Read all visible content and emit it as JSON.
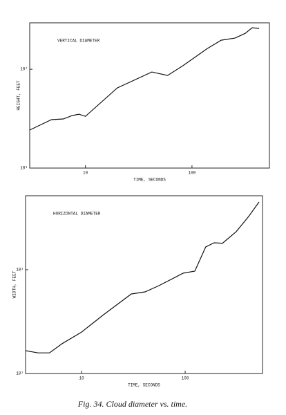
{
  "chart_data": [
    {
      "type": "line",
      "title": "VERTICAL DIAMETER",
      "xlabel": "TIME, SECONDS",
      "ylabel": "HEIGHT, FEET",
      "color": "#111",
      "log_x": true,
      "log_y": true,
      "x": [
        3.0,
        4.8,
        6.2,
        7.5,
        8.7,
        10,
        19.9,
        42,
        59,
        82,
        139,
        188,
        253,
        316,
        367,
        427
      ],
      "values": [
        2425,
        3090,
        3140,
        3400,
        3510,
        3340,
        6470,
        9380,
        8650,
        10840,
        16200,
        19700,
        20650,
        23100,
        26300,
        25900
      ],
      "xlim": [
        3.0,
        533
      ],
      "ylim": [
        1000,
        29500
      ],
      "xticks": [
        10,
        100
      ],
      "yticks": [
        {
          "value": 1000,
          "label": "10³"
        },
        {
          "value": 10000,
          "label": "10⁴"
        }
      ]
    },
    {
      "type": "line",
      "title": "HORIZONTAL DIAMETER",
      "xlabel": "TIME, SECONDS",
      "ylabel": "WIDTH, FEET",
      "color": "#111",
      "log_x": true,
      "log_y": true,
      "x": [
        2.88,
        3.8,
        4.9,
        6.5,
        10,
        16.3,
        30.2,
        41,
        55.8,
        95.5,
        124,
        158,
        191,
        229,
        259,
        311,
        410,
        517
      ],
      "values": [
        166,
        158,
        158,
        194,
        251,
        369,
        584,
        612,
        703,
        926,
        970,
        1660,
        1820,
        1800,
        1995,
        2330,
        3260,
        4500
      ],
      "xlim": [
        2.88,
        558
      ],
      "ylim": [
        100,
        5170
      ],
      "xticks": [
        10,
        100
      ],
      "yticks": [
        {
          "value": 100,
          "label": "10²"
        },
        {
          "value": 1000,
          "label": "10³"
        }
      ]
    }
  ],
  "caption": "Fig. 34.  Cloud diameter vs. time."
}
